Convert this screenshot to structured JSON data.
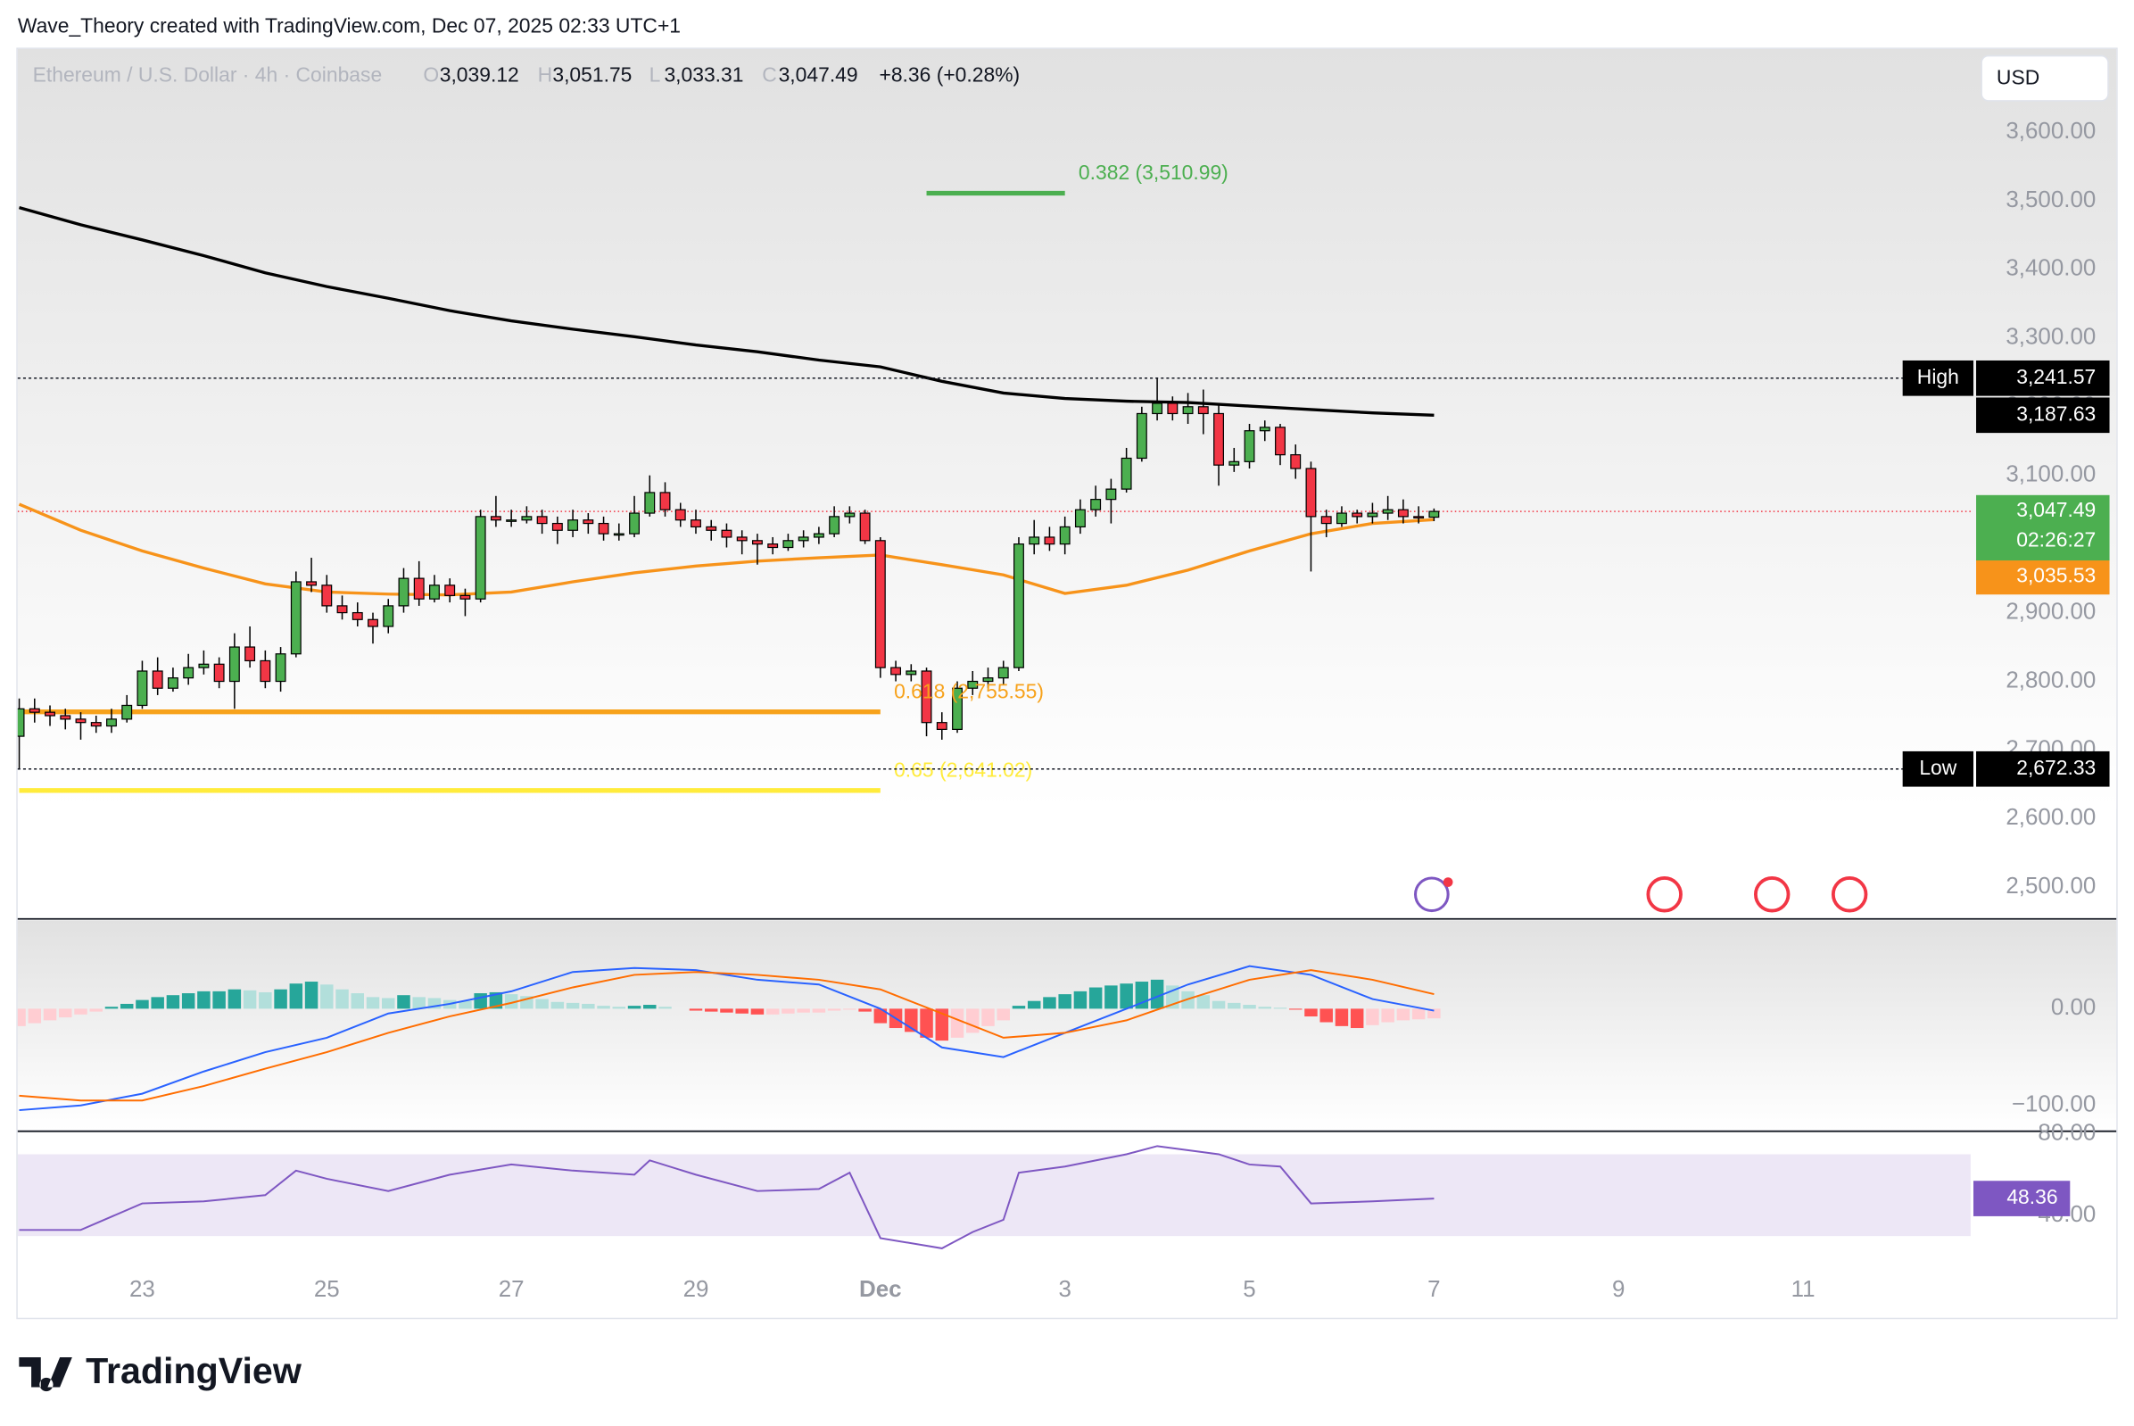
{
  "header": {
    "author_line": "Wave_Theory created with TradingView.com, Dec 07, 2025 02:33 UTC+1",
    "currency": "USD"
  },
  "footer": {
    "logo": "TradingView"
  },
  "chart_data": [
    {
      "type": "candlestick",
      "title": "Ethereum / U.S. Dollar · 4h · Coinbase",
      "ohlc_legend": [
        {
          "key": "O",
          "value": "3,039.12"
        },
        {
          "key": "H",
          "value": "3,051.75"
        },
        {
          "key": "L",
          "value": "3,033.31"
        },
        {
          "key": "C",
          "value": "3,047.49"
        }
      ],
      "change": "+8.36 (+0.28%)",
      "up_color": "#4caf50",
      "down_color": "#f23645",
      "border_color": "#000000",
      "candles": [
        [
          2720,
          2775,
          2672.33,
          2760
        ],
        [
          2760,
          2775,
          2740,
          2755
        ],
        [
          2755,
          2765,
          2735,
          2750
        ],
        [
          2750,
          2760,
          2730,
          2745
        ],
        [
          2745,
          2755,
          2715,
          2740
        ],
        [
          2740,
          2750,
          2725,
          2735
        ],
        [
          2735,
          2760,
          2725,
          2745
        ],
        [
          2745,
          2780,
          2740,
          2765
        ],
        [
          2765,
          2830,
          2760,
          2815
        ],
        [
          2815,
          2835,
          2780,
          2790
        ],
        [
          2790,
          2820,
          2785,
          2805
        ],
        [
          2805,
          2840,
          2795,
          2820
        ],
        [
          2820,
          2845,
          2810,
          2825
        ],
        [
          2825,
          2835,
          2790,
          2800
        ],
        [
          2800,
          2870,
          2760,
          2850
        ],
        [
          2850,
          2880,
          2820,
          2830
        ],
        [
          2830,
          2845,
          2790,
          2800
        ],
        [
          2800,
          2850,
          2785,
          2840
        ],
        [
          2840,
          2960,
          2835,
          2945
        ],
        [
          2945,
          2980,
          2930,
          2940
        ],
        [
          2940,
          2955,
          2900,
          2910
        ],
        [
          2910,
          2925,
          2890,
          2900
        ],
        [
          2900,
          2915,
          2880,
          2890
        ],
        [
          2890,
          2900,
          2855,
          2880
        ],
        [
          2880,
          2920,
          2870,
          2910
        ],
        [
          2910,
          2965,
          2900,
          2950
        ],
        [
          2950,
          2975,
          2910,
          2920
        ],
        [
          2920,
          2955,
          2915,
          2940
        ],
        [
          2940,
          2950,
          2915,
          2925
        ],
        [
          2925,
          2935,
          2895,
          2920
        ],
        [
          2920,
          3050,
          2915,
          3040
        ],
        [
          3040,
          3070,
          3025,
          3035
        ],
        [
          3035,
          3050,
          3025,
          3035
        ],
        [
          3035,
          3055,
          3030,
          3040
        ],
        [
          3040,
          3050,
          3015,
          3030
        ],
        [
          3030,
          3040,
          3000,
          3020
        ],
        [
          3020,
          3050,
          3010,
          3035
        ],
        [
          3035,
          3045,
          3015,
          3030
        ],
        [
          3030,
          3040,
          3005,
          3015
        ],
        [
          3015,
          3030,
          3005,
          3015
        ],
        [
          3015,
          3070,
          3010,
          3045
        ],
        [
          3045,
          3100,
          3040,
          3075
        ],
        [
          3075,
          3090,
          3040,
          3050
        ],
        [
          3050,
          3060,
          3025,
          3035
        ],
        [
          3035,
          3050,
          3015,
          3025
        ],
        [
          3025,
          3035,
          3005,
          3020
        ],
        [
          3020,
          3030,
          2995,
          3010
        ],
        [
          3010,
          3020,
          2985,
          3005
        ],
        [
          3005,
          3015,
          2970,
          3000
        ],
        [
          3000,
          3010,
          2985,
          2995
        ],
        [
          2995,
          3015,
          2990,
          3005
        ],
        [
          3005,
          3020,
          2995,
          3010
        ],
        [
          3010,
          3025,
          3000,
          3015
        ],
        [
          3015,
          3055,
          3010,
          3040
        ],
        [
          3040,
          3055,
          3030,
          3045
        ],
        [
          3045,
          3050,
          3000,
          3005
        ],
        [
          3005,
          3010,
          2805,
          2820
        ],
        [
          2820,
          2830,
          2800,
          2810
        ],
        [
          2810,
          2825,
          2800,
          2815
        ],
        [
          2815,
          2820,
          2720,
          2740
        ],
        [
          2740,
          2755,
          2715,
          2730
        ],
        [
          2730,
          2800,
          2725,
          2790
        ],
        [
          2790,
          2815,
          2780,
          2800
        ],
        [
          2800,
          2820,
          2790,
          2805
        ],
        [
          2805,
          2830,
          2795,
          2820
        ],
        [
          2820,
          3010,
          2815,
          3000
        ],
        [
          3000,
          3035,
          2985,
          3010
        ],
        [
          3010,
          3025,
          2990,
          3000
        ],
        [
          3000,
          3040,
          2985,
          3025
        ],
        [
          3025,
          3065,
          3015,
          3050
        ],
        [
          3050,
          3085,
          3040,
          3065
        ],
        [
          3065,
          3095,
          3030,
          3080
        ],
        [
          3080,
          3140,
          3075,
          3125
        ],
        [
          3125,
          3200,
          3120,
          3190
        ],
        [
          3190,
          3241.57,
          3180,
          3205
        ],
        [
          3205,
          3215,
          3180,
          3190
        ],
        [
          3190,
          3220,
          3175,
          3200
        ],
        [
          3200,
          3225,
          3160,
          3190
        ],
        [
          3190,
          3205,
          3085,
          3115
        ],
        [
          3115,
          3140,
          3105,
          3120
        ],
        [
          3120,
          3175,
          3110,
          3165
        ],
        [
          3165,
          3180,
          3150,
          3170
        ],
        [
          3170,
          3175,
          3115,
          3130
        ],
        [
          3130,
          3145,
          3095,
          3110
        ],
        [
          3110,
          3120,
          2960,
          3040
        ],
        [
          3040,
          3050,
          3010,
          3030
        ],
        [
          3030,
          3055,
          3025,
          3045
        ],
        [
          3045,
          3050,
          3030,
          3040
        ],
        [
          3040,
          3060,
          3030,
          3045
        ],
        [
          3045,
          3070,
          3035,
          3050
        ],
        [
          3050,
          3065,
          3030,
          3040
        ],
        [
          3040,
          3055,
          3030,
          3039.12
        ],
        [
          3039.12,
          3051.75,
          3033.31,
          3047.49
        ]
      ],
      "series": [
        {
          "color": "#000000",
          "x": [
            0,
            4,
            8,
            12,
            16,
            20,
            24,
            28,
            32,
            36,
            40,
            44,
            48,
            52,
            56,
            60,
            64,
            68,
            72,
            76,
            80,
            84,
            88,
            92
          ],
          "values": [
            3490,
            3465,
            3443,
            3420,
            3395,
            3375,
            3358,
            3340,
            3325,
            3313,
            3302,
            3290,
            3280,
            3268,
            3258,
            3237,
            3220,
            3212,
            3208,
            3206,
            3201,
            3196,
            3191,
            3187.63
          ],
          "end_label": "3,187.63"
        },
        {
          "color": "#f7931a",
          "x": [
            0,
            4,
            8,
            12,
            16,
            20,
            24,
            28,
            32,
            36,
            40,
            44,
            48,
            52,
            56,
            60,
            64,
            68,
            72,
            76,
            80,
            84,
            88,
            92
          ],
          "values": [
            3058,
            3020,
            2990,
            2965,
            2942,
            2930,
            2927,
            2926,
            2930,
            2945,
            2958,
            2968,
            2975,
            2980,
            2984,
            2970,
            2955,
            2928,
            2940,
            2962,
            2990,
            3015,
            3030,
            3035.53
          ],
          "end_label": "3,035.53"
        }
      ],
      "fib_levels": [
        {
          "label": "0.382 (3,510.99)",
          "value": 3510.99,
          "color": "#4caf50",
          "x": [
            59,
            68
          ]
        },
        {
          "label": "0.618 (2,755.55)",
          "value": 2755.55,
          "color": "#f7a21b",
          "x": [
            0,
            56
          ]
        },
        {
          "label": "0.65 (2,641.02)",
          "value": 2641.02,
          "color": "#ffeb3b",
          "x": [
            0,
            56
          ]
        }
      ],
      "high": {
        "text": "High",
        "value": 3241.57,
        "label": "3,241.57"
      },
      "low": {
        "text": "Low",
        "value": 2672.33,
        "label": "2,672.33"
      },
      "last": {
        "value": 3047.49,
        "label": "3,047.49",
        "countdown": "02:26:27",
        "color": "#4caf50",
        "line_color": "#f23645"
      },
      "xlim": [
        -0.1,
        126.9
      ],
      "ylim": [
        2454,
        3721
      ],
      "yticks": [
        {
          "value": 2500,
          "label": "2,500.00"
        },
        {
          "value": 2600,
          "label": "2,600.00"
        },
        {
          "value": 2700,
          "label": "2,700.00"
        },
        {
          "value": 2800,
          "label": "2,800.00"
        },
        {
          "value": 2900,
          "label": "2,900.00"
        },
        {
          "value": 3000,
          "label": "3,000.00"
        },
        {
          "value": 3100,
          "label": "3,100.00"
        },
        {
          "value": 3200,
          "label": "3,200.00"
        },
        {
          "value": 3300,
          "label": "3,300.00"
        },
        {
          "value": 3400,
          "label": "3,400.00"
        },
        {
          "value": 3500,
          "label": "3,500.00"
        },
        {
          "value": 3600,
          "label": "3,600.00"
        }
      ]
    },
    {
      "type": "macd",
      "histogram": [
        -18,
        -15,
        -12,
        -9,
        -6,
        -3,
        2,
        5,
        9,
        12,
        14,
        16,
        18,
        18,
        20,
        19,
        17,
        20,
        26,
        28,
        25,
        20,
        16,
        12,
        11,
        14,
        12,
        11,
        9,
        8,
        16,
        17,
        15,
        13,
        10,
        7,
        6,
        5,
        3,
        2,
        3,
        4,
        2,
        0,
        -2,
        -3,
        -4,
        -5,
        -6,
        -6,
        -5,
        -4,
        -4,
        -2,
        -1,
        -3,
        -15,
        -20,
        -24,
        -30,
        -33,
        -30,
        -25,
        -18,
        -12,
        3,
        8,
        12,
        15,
        18,
        22,
        24,
        26,
        28,
        30,
        24,
        18,
        14,
        8,
        6,
        4,
        2,
        1,
        -1,
        -8,
        -14,
        -18,
        -20,
        -17,
        -14,
        -12,
        -11,
        -10
      ],
      "hist_colors": {
        "pos_up": "#26a69a",
        "pos_down": "#b2dfdb",
        "neg_down": "#ff5252",
        "neg_up": "#ffcdd2"
      },
      "series": [
        {
          "color": "#2962ff",
          "x": [
            0,
            4,
            8,
            12,
            16,
            20,
            24,
            28,
            32,
            36,
            40,
            44,
            48,
            52,
            56,
            60,
            64,
            68,
            72,
            76,
            80,
            84,
            88,
            92
          ],
          "values": [
            -105,
            -100,
            -88,
            -65,
            -45,
            -30,
            -5,
            5,
            18,
            38,
            42,
            40,
            30,
            25,
            0,
            -40,
            -50,
            -25,
            0,
            25,
            44,
            35,
            10,
            -2
          ]
        },
        {
          "color": "#ff6d00",
          "x": [
            0,
            4,
            8,
            12,
            16,
            20,
            24,
            28,
            32,
            36,
            40,
            44,
            48,
            52,
            56,
            60,
            64,
            68,
            72,
            76,
            80,
            84,
            88,
            92
          ],
          "values": [
            -90,
            -95,
            -95,
            -80,
            -62,
            -45,
            -25,
            -8,
            6,
            22,
            35,
            38,
            35,
            30,
            20,
            -5,
            -30,
            -25,
            -12,
            10,
            30,
            40,
            30,
            15
          ]
        }
      ],
      "xlim": [
        -0.1,
        126.9
      ],
      "ylim": [
        -125.4,
        91.5
      ],
      "yticks": [
        {
          "value": 0,
          "label": "0.00"
        },
        {
          "value": -100,
          "label": "−100.00"
        }
      ]
    },
    {
      "type": "line",
      "series": [
        {
          "color": "#7e57c2",
          "x": [
            0,
            4,
            8,
            12,
            16,
            18,
            20,
            24,
            28,
            32,
            36,
            40,
            41,
            44,
            48,
            52,
            54,
            56,
            60,
            62,
            64,
            65,
            68,
            72,
            74,
            78,
            80,
            82,
            84,
            88,
            92
          ],
          "values": [
            33,
            33,
            46,
            47,
            50,
            62,
            58,
            52,
            60,
            65,
            62,
            60,
            67,
            60,
            52,
            53,
            61,
            29,
            24,
            32,
            38,
            61,
            64,
            70,
            74,
            70,
            65,
            64,
            46,
            47,
            48.36
          ],
          "end_label": "48.36"
        }
      ],
      "band": [
        30,
        70
      ],
      "band_color": "#ede7f6",
      "xlim": [
        -0.1,
        126.9
      ],
      "ylim": [
        14,
        80.6
      ],
      "yticks": [
        {
          "value": 80,
          "label": "80.00"
        },
        {
          "value": 40,
          "label": "40.00"
        }
      ],
      "xticks": [
        {
          "value": 8,
          "label": "23"
        },
        {
          "value": 20,
          "label": "25"
        },
        {
          "value": 32,
          "label": "27"
        },
        {
          "value": 44,
          "label": "29"
        },
        {
          "value": 56,
          "label": "Dec"
        },
        {
          "value": 68,
          "label": "3"
        },
        {
          "value": 80,
          "label": "5"
        },
        {
          "value": 92,
          "label": "7"
        },
        {
          "value": 104,
          "label": "9"
        },
        {
          "value": 116,
          "label": "11"
        }
      ]
    }
  ]
}
